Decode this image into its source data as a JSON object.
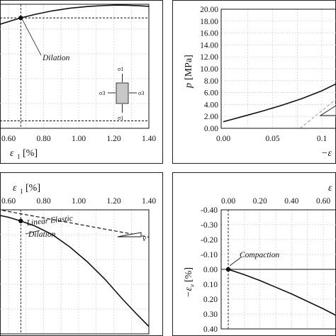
{
  "chart_data": [
    {
      "id": "tl",
      "type": "line",
      "xlabel_sym": "ε",
      "xlabel_sub": "1",
      "xlabel_unit": "[%]",
      "xticks": [
        "0.60",
        "0.80",
        "1.00",
        "1.20",
        "1.40"
      ],
      "xlim": [
        0.47,
        1.4
      ],
      "ylim": [
        0,
        1
      ],
      "grid": true,
      "series": [
        {
          "x": [
            0.47,
            0.55,
            0.6,
            0.67,
            0.75,
            0.85,
            0.95,
            1.05,
            1.15,
            1.22,
            1.28,
            1.34,
            1.4
          ],
          "y": [
            0.8,
            0.838,
            0.86,
            0.89,
            0.918,
            0.947,
            0.968,
            0.982,
            0.99,
            0.993,
            0.992,
            0.988,
            0.983
          ]
        }
      ],
      "reference_y": 0.89,
      "reference_y2": 0.06,
      "reference_x": 0.67,
      "point": {
        "x": 0.67,
        "y": 0.89
      },
      "annotation": "Dilation",
      "inset_labels": [
        "σ1",
        "σ3",
        "σ3",
        "σ1"
      ]
    },
    {
      "id": "tr",
      "type": "line",
      "ylabel_sym": "p",
      "ylabel_unit": "[MPa]",
      "yticks": [
        "20.00",
        "18.00",
        "16.00",
        "14.00",
        "12.00",
        "10.00",
        "8.00",
        "6.00",
        "4.00",
        "2.00",
        "0.00"
      ],
      "xticks": [
        "0.00",
        "0.05",
        "0.1"
      ],
      "xlabel_partial": "−ε",
      "xlim": [
        0,
        0.14
      ],
      "ylim": [
        0,
        20
      ],
      "grid": true,
      "series": [
        {
          "x": [
            0.0,
            0.02,
            0.04,
            0.06,
            0.08,
            0.1,
            0.12,
            0.135
          ],
          "y": [
            1.1,
            2.0,
            2.9,
            3.9,
            5.0,
            6.3,
            7.9,
            9.5
          ]
        }
      ],
      "dashed_line": {
        "x": [
          0.078,
          0.14
        ],
        "y": [
          0,
          8.3
        ]
      }
    },
    {
      "id": "bl",
      "type": "line",
      "xlabel_sym": "ε",
      "xlabel_sub": "1",
      "xlabel_unit": "[%]",
      "xticks": [
        "0.60",
        "0.80",
        "1.00",
        "1.20",
        "1.40"
      ],
      "xlim": [
        0.47,
        1.4
      ],
      "ylim": [
        0,
        1
      ],
      "grid": true,
      "series": [
        {
          "x": [
            0.47,
            0.55,
            0.6,
            0.67,
            0.75,
            0.85,
            0.95,
            1.05,
            1.15,
            1.25,
            1.33,
            1.4
          ],
          "y": [
            0.97,
            0.955,
            0.94,
            0.91,
            0.87,
            0.8,
            0.7,
            0.58,
            0.44,
            0.28,
            0.16,
            0.06
          ]
        }
      ],
      "linear_elastic": {
        "x": [
          0.47,
          1.4
        ],
        "y": [
          1.02,
          0.78
        ]
      },
      "reference_x": 0.67,
      "point": {
        "x": 0.67,
        "y": 0.91
      },
      "annotations": [
        "Linear Elastic",
        "Dilation",
        "ν"
      ]
    },
    {
      "id": "br",
      "type": "line",
      "xlabel_partial": "ε",
      "xticks": [
        "0.00",
        "0.20",
        "0.40",
        "0.60"
      ],
      "ylabel_sym": "−ε",
      "ylabel_sub": "v",
      "ylabel_unit": "[%]",
      "yticks": [
        "-0.40",
        "-0.30",
        "-0.20",
        "-0.10",
        "0.00",
        "0.10",
        "0.20",
        "0.30",
        "0.40"
      ],
      "xlim": [
        -0.014,
        0.72
      ],
      "ylim": [
        -0.4,
        0.4
      ],
      "grid": true,
      "series": [
        {
          "x": [
            0.0,
            0.1,
            0.2,
            0.3,
            0.4,
            0.5,
            0.6,
            0.7
          ],
          "y": [
            0.0,
            0.035,
            0.075,
            0.12,
            0.165,
            0.215,
            0.265,
            0.32
          ]
        }
      ],
      "reference_y": 0.0,
      "reference_x": 0.0,
      "point": {
        "x": 0.0,
        "y": 0.0
      },
      "annotation": "Compaction"
    }
  ]
}
